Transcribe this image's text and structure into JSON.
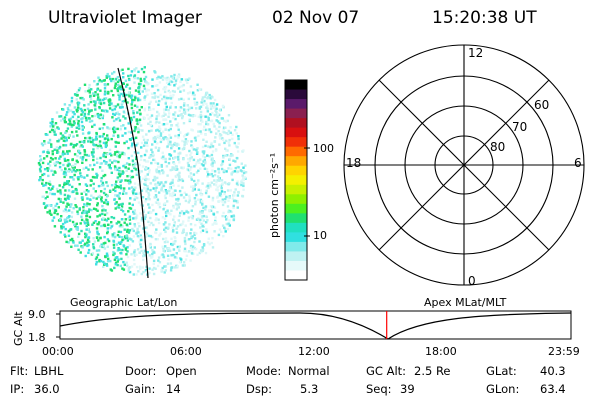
{
  "header": {
    "instrument": "Ultraviolet Imager",
    "date": "02 Nov 07",
    "time": "15:20:38 UT"
  },
  "colorbar": {
    "label": "photon cm⁻²s⁻¹",
    "ticks": [
      {
        "label": "100",
        "value": 100
      },
      {
        "label": "10",
        "value": 10
      }
    ],
    "colors": [
      "#000000",
      "#2a0a3a",
      "#5a1a6a",
      "#8a2050",
      "#b01020",
      "#d81010",
      "#f03008",
      "#ff6a00",
      "#ffa800",
      "#ffd400",
      "#f4f000",
      "#c8f000",
      "#8ef000",
      "#4cf020",
      "#20e070",
      "#20e0c0",
      "#30e0e0",
      "#80eaea",
      "#bff2f2",
      "#e6fafa",
      "#ffffff"
    ]
  },
  "polar_grid": {
    "top_label": "12",
    "bottom_label": "0",
    "left_label": "18",
    "right_label": "6",
    "ring_labels": [
      "60",
      "70",
      "80"
    ]
  },
  "strip": {
    "left_title": "Geographic Lat/Lon",
    "right_title": "Apex MLat/MLT",
    "axis_label": "GC Alt",
    "y_ticks": [
      "9.0",
      "1.8"
    ],
    "x_ticks": [
      "00:00",
      "06:00",
      "12:00",
      "18:00",
      "23:59"
    ],
    "current_time_hours": 15.344,
    "marker_color": "#ff0000"
  },
  "info": {
    "row1": [
      {
        "label": "Flt:",
        "value": "LBHL"
      },
      {
        "label": "Door:",
        "value": "Open"
      },
      {
        "label": "Mode:",
        "value": "Normal"
      },
      {
        "label": "GC Alt:",
        "value": "2.5 Re"
      },
      {
        "label": "GLat:",
        "value": "40.3"
      }
    ],
    "row2": [
      {
        "label": "IP:",
        "value": "36.0"
      },
      {
        "label": "Gain:",
        "value": "14"
      },
      {
        "label": "Dsp:",
        "value": "5.3"
      },
      {
        "label": "Seq:",
        "value": "39"
      },
      {
        "label": "GLon:",
        "value": "63.4"
      }
    ]
  }
}
